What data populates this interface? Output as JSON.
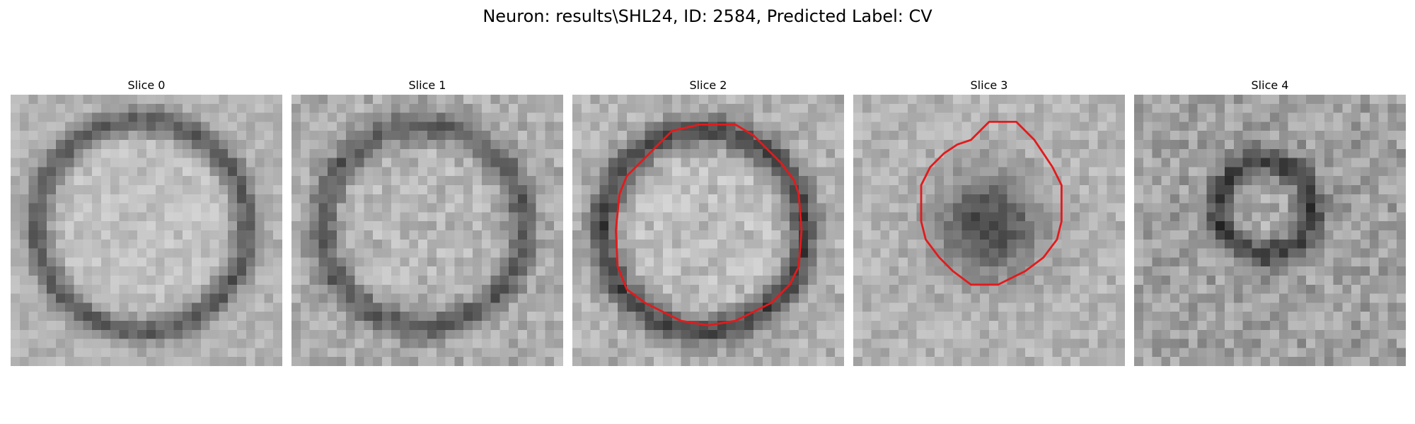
{
  "figure": {
    "title": "Neuron: results\\SHL24, ID: 2584, Predicted Label: CV",
    "palette": {
      "background": "#ffffff",
      "contour": "#e41a1c"
    }
  },
  "slices": [
    {
      "title": "Slice 0",
      "contour": false,
      "pattern": "ring"
    },
    {
      "title": "Slice 1",
      "contour": false,
      "pattern": "ring"
    },
    {
      "title": "Slice 2",
      "contour": true,
      "pattern": "ring"
    },
    {
      "title": "Slice 3",
      "contour": true,
      "pattern": "dark-blob"
    },
    {
      "title": "Slice 4",
      "contour": false,
      "pattern": "small-ring"
    }
  ]
}
